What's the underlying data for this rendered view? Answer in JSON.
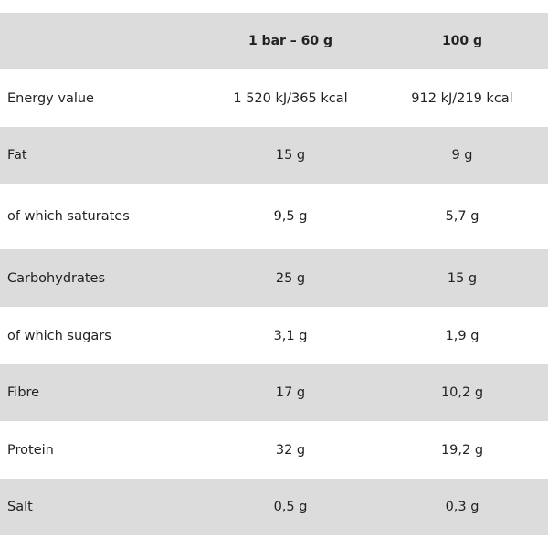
{
  "table": {
    "header": [
      "1 bar – 60 g",
      "100 g"
    ],
    "rows": [
      [
        "Energy value",
        "1 520 kJ/365 kcal",
        "912 kJ/219 kcal"
      ],
      [
        "Fat",
        "15 g",
        "9 g"
      ],
      [
        "of which saturates",
        "9,5 g",
        "5,7 g"
      ],
      [
        "Carbohydrates",
        "25 g",
        "15 g"
      ],
      [
        "of which sugars",
        "3,1 g",
        "1,9 g"
      ],
      [
        "Fibre",
        "17 g",
        "10,2 g"
      ],
      [
        "Protein",
        "32 g",
        "19,2 g"
      ],
      [
        "Salt",
        "0,5 g",
        "0,3 g"
      ]
    ]
  }
}
